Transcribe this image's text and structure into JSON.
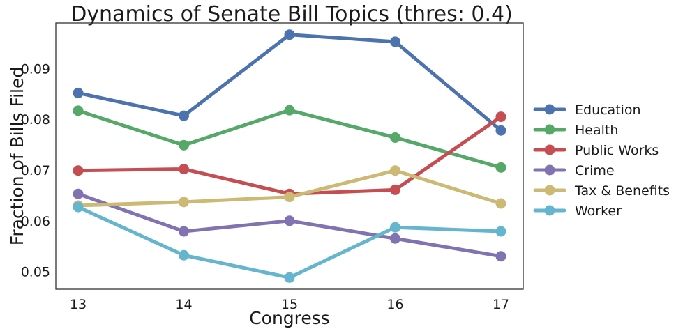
{
  "chart_data": {
    "type": "line",
    "title": "Dynamics of Senate Bill Topics (thres: 0.4)",
    "xlabel": "Congress",
    "ylabel": "Fraction of Bills Filed",
    "categories": [
      "13",
      "14",
      "15",
      "16",
      "17"
    ],
    "yticks": [
      "0.05",
      "0.06",
      "0.07",
      "0.08",
      "0.09"
    ],
    "ytick_values": [
      0.05,
      0.06,
      0.07,
      0.08,
      0.09
    ],
    "ylim": [
      0.0465,
      0.099
    ],
    "grid": false,
    "legend_position": "right, outside plot",
    "series": [
      {
        "name": "Education",
        "color": "#4c72b0",
        "values": [
          0.0852,
          0.0807,
          0.0967,
          0.0953,
          0.0778
        ]
      },
      {
        "name": "Health",
        "color": "#55a868",
        "values": [
          0.0817,
          0.0749,
          0.0818,
          0.0764,
          0.0705
        ]
      },
      {
        "name": "Public Works",
        "color": "#c44e52",
        "values": [
          0.0699,
          0.0702,
          0.0653,
          0.0661,
          0.0805
        ]
      },
      {
        "name": "Crime",
        "color": "#8172b2",
        "values": [
          0.0653,
          0.0579,
          0.06,
          0.0565,
          0.053
        ]
      },
      {
        "name": "Tax & Benefits",
        "color": "#ccb974",
        "values": [
          0.063,
          0.0637,
          0.0647,
          0.0699,
          0.0634
        ]
      },
      {
        "name": "Worker",
        "color": "#64b5cd",
        "values": [
          0.0627,
          0.0532,
          0.0488,
          0.0587,
          0.0579
        ]
      }
    ]
  }
}
